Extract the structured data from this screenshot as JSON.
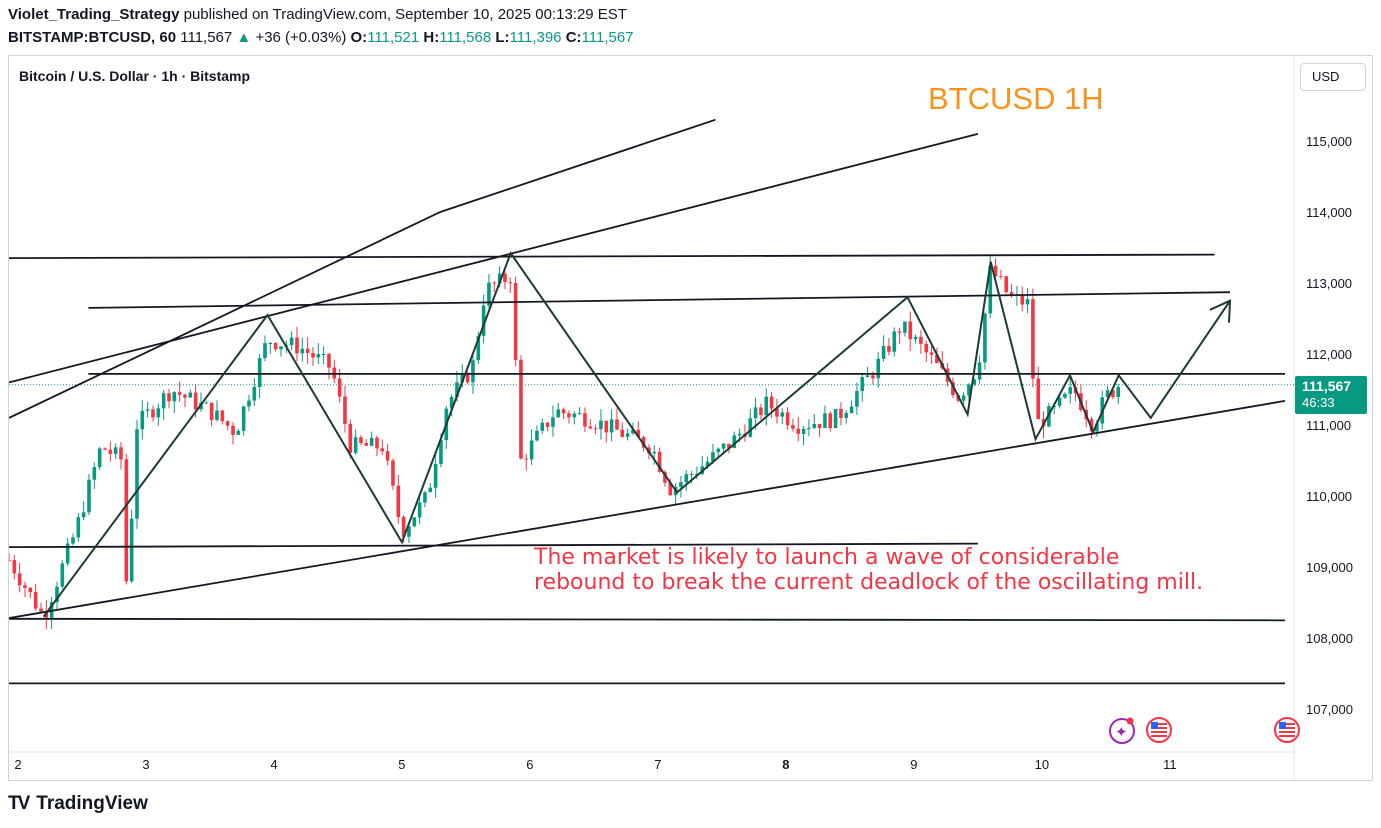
{
  "header": {
    "author": "Violet_Trading_Strategy",
    "published": "published on TradingView.com, September 10, 2025 00:13:29 EST",
    "symbol": "BITSTAMP:BTCUSD, 60",
    "last": "111,567",
    "arrow": "▲",
    "change": "+36 (+0.03%)",
    "o_label": "O:",
    "o_value": "111,521",
    "h_label": "H:",
    "h_value": "111,568",
    "l_label": "L:",
    "l_value": "111,396",
    "c_label": "C:",
    "c_value": "111,567"
  },
  "chart_title": "Bitcoin / U.S. Dollar · 1h · Bitstamp",
  "currency_button": "USD",
  "price_tag": {
    "price": "111,567",
    "countdown": "46:33"
  },
  "footer": {
    "brand": "TradingView"
  },
  "colors": {
    "up": "#089981",
    "down": "#f23645",
    "title_orange": "#f7931a",
    "annotation_red": "#f23645",
    "line": "#131722"
  },
  "chart_data": {
    "type": "candlestick",
    "title": "BTCUSD 1H",
    "annotation": [
      "The market is likely to launch a wave of considerable",
      "rebound to break the current deadlock of the oscillating mill."
    ],
    "x_ticks": [
      {
        "label": "2",
        "day": 2
      },
      {
        "label": "3",
        "day": 3
      },
      {
        "label": "4",
        "day": 4
      },
      {
        "label": "5",
        "day": 5
      },
      {
        "label": "6",
        "day": 6
      },
      {
        "label": "7",
        "day": 7
      },
      {
        "label": "8",
        "day": 8
      },
      {
        "label": "9",
        "day": 9
      },
      {
        "label": "10",
        "day": 10
      },
      {
        "label": "11",
        "day": 11
      }
    ],
    "x_range_days": [
      1.93,
      11.97
    ],
    "y_ticks": [
      115000,
      114000,
      113000,
      112000,
      111000,
      110000,
      109000,
      108000,
      107000
    ],
    "y_tick_labels": [
      "115,000",
      "114,000",
      "113,000",
      "112,000",
      "111,000",
      "110,000",
      "109,000",
      "108,000",
      "107,000"
    ],
    "y_range": [
      106300,
      116000
    ],
    "last_price": 111567,
    "price_path": [
      [
        1.93,
        109100
      ],
      [
        2.2,
        108300
      ],
      [
        2.45,
        109500
      ],
      [
        2.65,
        110700
      ],
      [
        2.82,
        110500
      ],
      [
        2.85,
        108600
      ],
      [
        2.93,
        111000
      ],
      [
        3.2,
        111500
      ],
      [
        3.5,
        111200
      ],
      [
        3.7,
        110900
      ],
      [
        3.95,
        112200
      ],
      [
        4.2,
        112100
      ],
      [
        4.45,
        111800
      ],
      [
        4.6,
        110700
      ],
      [
        4.85,
        110700
      ],
      [
        5.0,
        109500
      ],
      [
        5.2,
        110000
      ],
      [
        5.35,
        111300
      ],
      [
        5.55,
        111800
      ],
      [
        5.65,
        112900
      ],
      [
        5.85,
        113100
      ],
      [
        5.93,
        110500
      ],
      [
        6.2,
        111200
      ],
      [
        6.45,
        111100
      ],
      [
        6.7,
        110900
      ],
      [
        6.95,
        110700
      ],
      [
        7.1,
        110100
      ],
      [
        7.4,
        110500
      ],
      [
        7.6,
        110800
      ],
      [
        7.85,
        111300
      ],
      [
        8.1,
        111000
      ],
      [
        8.4,
        111100
      ],
      [
        8.7,
        111800
      ],
      [
        8.9,
        112400
      ],
      [
        9.15,
        111900
      ],
      [
        9.35,
        111400
      ],
      [
        9.5,
        111800
      ],
      [
        9.6,
        113200
      ],
      [
        9.75,
        112800
      ],
      [
        9.9,
        112700
      ],
      [
        9.95,
        111000
      ],
      [
        10.1,
        111200
      ],
      [
        10.25,
        111500
      ],
      [
        10.4,
        111000
      ],
      [
        10.5,
        111400
      ],
      [
        10.6,
        111567
      ]
    ],
    "drawings": [
      {
        "name": "wedge-upper-steep-line",
        "points": [
          [
            1.93,
            111100
          ],
          [
            5.3,
            114000
          ],
          [
            7.45,
            115300
          ]
        ]
      },
      {
        "name": "wedge-upper-line",
        "points": [
          [
            1.93,
            111600
          ],
          [
            9.5,
            115100
          ]
        ]
      },
      {
        "name": "resistance-upper-line",
        "points": [
          [
            1.93,
            113350
          ],
          [
            11.35,
            113400
          ]
        ]
      },
      {
        "name": "resistance-line",
        "points": [
          [
            2.55,
            112650
          ],
          [
            11.47,
            112870
          ]
        ]
      },
      {
        "name": "mid-range-line",
        "points": [
          [
            2.55,
            111720
          ],
          [
            11.9,
            111720
          ]
        ]
      },
      {
        "name": "rising-support-line",
        "points": [
          [
            1.93,
            108280
          ],
          [
            11.9,
            111340
          ]
        ]
      },
      {
        "name": "support-line",
        "points": [
          [
            1.93,
            109280
          ],
          [
            9.5,
            109330
          ]
        ]
      },
      {
        "name": "support-lower-line",
        "points": [
          [
            1.93,
            108270
          ],
          [
            11.9,
            108250
          ]
        ]
      },
      {
        "name": "bottom-line",
        "points": [
          [
            1.93,
            107360
          ],
          [
            11.9,
            107360
          ]
        ]
      }
    ],
    "zigzag": [
      [
        2.2,
        108300
      ],
      [
        3.95,
        112550
      ],
      [
        5.0,
        109350
      ],
      [
        5.85,
        113420
      ],
      [
        7.15,
        110050
      ],
      [
        8.95,
        112800
      ],
      [
        9.42,
        111150
      ],
      [
        9.6,
        113300
      ],
      [
        9.95,
        110800
      ],
      [
        10.22,
        111700
      ],
      [
        10.4,
        110900
      ],
      [
        10.6,
        111700
      ],
      [
        10.85,
        111100
      ],
      [
        11.47,
        112750
      ]
    ]
  }
}
